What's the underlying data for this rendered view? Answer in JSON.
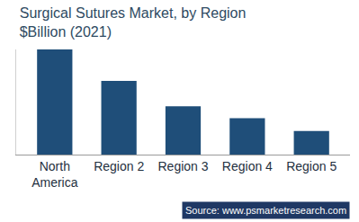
{
  "chart_data": {
    "type": "bar",
    "title": "Surgical Sutures Market, by Region",
    "subtitle": "$Billion (2021)",
    "categories": [
      "North America",
      "Region 2",
      "Region 3",
      "Region 4",
      "Region 5"
    ],
    "values": [
      1.7,
      1.19,
      0.78,
      0.59,
      0.38
    ],
    "color": "#1f4e79",
    "ylim": [
      0,
      1.7
    ],
    "yticks": [],
    "grid": false,
    "tick_labels": "x",
    "annotations": [
      "Source: www.psmarketresearch.com"
    ]
  }
}
